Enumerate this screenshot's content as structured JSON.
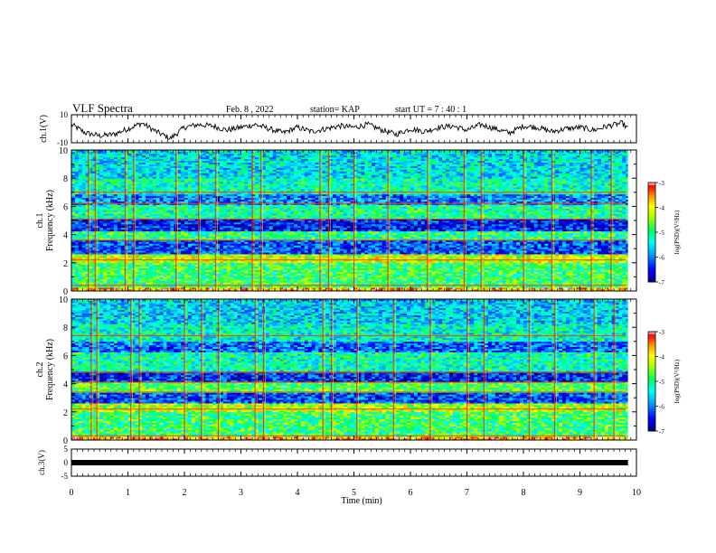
{
  "header": {
    "title": "VLF Spectra",
    "date": "Feb. 8  , 2022",
    "station": "station= KAP",
    "start_ut": "start  UT =   7 : 40 : 1"
  },
  "chart_data": [
    {
      "type": "line",
      "panel": "ch1_waveform",
      "ylabel": "ch.1(V)",
      "ylim": [
        -10,
        10
      ],
      "y_ticks": [
        "10",
        "-10"
      ],
      "x": [
        0.0,
        0.25,
        0.5,
        0.75,
        1.0,
        1.25,
        1.5,
        1.75,
        2.0,
        2.25,
        2.5,
        2.75,
        3.0,
        3.25,
        3.5,
        3.75,
        4.0,
        4.25,
        4.5,
        4.75,
        5.0,
        5.25,
        5.5,
        5.75,
        6.0,
        6.25,
        6.5,
        6.75,
        7.0,
        7.25,
        7.5,
        7.75,
        8.0,
        8.25,
        8.5,
        8.75,
        9.0,
        9.25,
        9.5,
        9.75,
        9.85
      ],
      "values": [
        3,
        -3,
        -5,
        -4,
        0,
        4,
        -2,
        -7,
        1,
        3,
        2,
        -1,
        1,
        3,
        0,
        -3,
        1,
        -2,
        0,
        2,
        1,
        3,
        -1,
        -4,
        0,
        -2,
        1,
        2,
        -1,
        3,
        0,
        -3,
        2,
        1,
        -2,
        0,
        1,
        -1,
        2,
        4,
        0
      ]
    },
    {
      "type": "heatmap",
      "panel": "ch1_spectrogram",
      "ylabel": "ch.1\nFrequency (kHz)",
      "ylabel_lines": [
        "ch.1",
        "Frequency (kHz)"
      ],
      "ylim": [
        0,
        10
      ],
      "y_ticks": [
        "0",
        "2",
        "4",
        "6",
        "8",
        "10"
      ],
      "colorbar": {
        "label": "log(PSD)(V²/Hz)",
        "range": [
          -7,
          -3
        ],
        "ticks": [
          "-3",
          "-4",
          "-5",
          "-6",
          "-7"
        ]
      },
      "bands": [
        {
          "from_khz": 0.0,
          "to_khz": 0.3,
          "level": -3.6
        },
        {
          "from_khz": 0.3,
          "to_khz": 2.0,
          "level": -4.9
        },
        {
          "from_khz": 2.0,
          "to_khz": 2.6,
          "level": -4.2
        },
        {
          "from_khz": 2.6,
          "to_khz": 3.6,
          "level": -6.2
        },
        {
          "from_khz": 3.6,
          "to_khz": 4.3,
          "level": -5.0
        },
        {
          "from_khz": 4.3,
          "to_khz": 5.1,
          "level": -6.4
        },
        {
          "from_khz": 5.1,
          "to_khz": 6.1,
          "level": -5.1
        },
        {
          "from_khz": 6.1,
          "to_khz": 6.9,
          "level": -6.0
        },
        {
          "from_khz": 6.9,
          "to_khz": 8.0,
          "level": -5.2
        },
        {
          "from_khz": 8.0,
          "to_khz": 10.0,
          "level": -5.5
        }
      ],
      "lines_khz": [
        0.4,
        2.2,
        3.6,
        5.1,
        6.2,
        7.0
      ],
      "sferics_min": [
        0.3,
        0.42,
        0.95,
        1.1,
        1.85,
        2.25,
        2.55,
        3.2,
        3.35,
        4.4,
        4.55,
        5.0,
        5.6,
        6.3,
        6.95,
        7.25,
        8.0,
        8.5,
        9.2,
        9.55
      ]
    },
    {
      "type": "heatmap",
      "panel": "ch2_spectrogram",
      "ylabel": "ch.2\nFrequency (kHz)",
      "ylabel_lines": [
        "ch.2",
        "Frequency (kHz)"
      ],
      "ylim": [
        0,
        10
      ],
      "y_ticks": [
        "0",
        "2",
        "4",
        "6",
        "8",
        "10"
      ],
      "colorbar": {
        "label": "log(PSD)(V²/Hz)",
        "range": [
          -7,
          -3
        ],
        "ticks": [
          "-3",
          "-4",
          "-5",
          "-6",
          "-7"
        ]
      },
      "bands": [
        {
          "from_khz": 0.0,
          "to_khz": 0.3,
          "level": -3.6
        },
        {
          "from_khz": 0.3,
          "to_khz": 2.0,
          "level": -4.9
        },
        {
          "from_khz": 2.0,
          "to_khz": 2.6,
          "level": -4.3
        },
        {
          "from_khz": 2.6,
          "to_khz": 3.4,
          "level": -6.2
        },
        {
          "from_khz": 3.4,
          "to_khz": 4.1,
          "level": -4.8
        },
        {
          "from_khz": 4.1,
          "to_khz": 4.9,
          "level": -6.4
        },
        {
          "from_khz": 4.9,
          "to_khz": 6.2,
          "level": -5.2
        },
        {
          "from_khz": 6.2,
          "to_khz": 7.0,
          "level": -6.1
        },
        {
          "from_khz": 7.0,
          "to_khz": 8.2,
          "level": -5.3
        },
        {
          "from_khz": 8.2,
          "to_khz": 10.0,
          "level": -5.6
        }
      ],
      "lines_khz": [
        0.3,
        2.2,
        3.4,
        4.1,
        4.8,
        7.4
      ],
      "sferics_min": [
        0.35,
        0.45,
        1.05,
        1.2,
        2.0,
        2.3,
        2.6,
        3.25,
        3.4,
        4.45,
        4.6,
        5.05,
        5.7,
        6.35,
        7.0,
        7.3,
        8.1,
        8.55,
        9.25,
        9.6
      ]
    },
    {
      "type": "line",
      "panel": "ch3_waveform",
      "ylabel": "ch.3(V)",
      "ylim": [
        -5,
        5
      ],
      "y_ticks": [
        "5",
        "0",
        "-5"
      ],
      "x": [
        0.0,
        9.85
      ],
      "values": [
        0,
        0
      ]
    }
  ],
  "x_axis": {
    "label": "Time (min)",
    "range": [
      0,
      10
    ],
    "ticks": [
      "0",
      "1",
      "2",
      "3",
      "4",
      "5",
      "6",
      "7",
      "8",
      "9",
      "10"
    ]
  },
  "colors": {
    "trace": "#000000",
    "colormap": [
      "#000080",
      "#0000ff",
      "#00a0ff",
      "#00ffff",
      "#00ff60",
      "#a0ff00",
      "#ffff00",
      "#ff8000",
      "#ff0000",
      "#ffffff"
    ]
  }
}
